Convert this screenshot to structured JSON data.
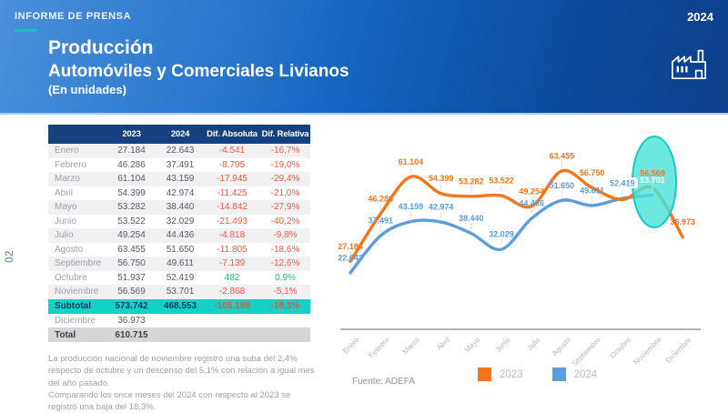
{
  "header": {
    "kicker": "INFORME DE PRENSA",
    "year": "2024",
    "title_line1": "Producción",
    "title_line2": "Automóviles y Comerciales Livianos",
    "title_line3": "(En unidades)"
  },
  "page_number": "02",
  "colors": {
    "negative": "#f15b44",
    "positive": "#28b878",
    "subtotal_highlight": "#12d2c5",
    "table_header": "#15417c",
    "accent_teal": "#00c9b7"
  },
  "table": {
    "headers": [
      "",
      "2023",
      "2024",
      "Dif. Absoluta",
      "Dif. Relativa"
    ],
    "rows": [
      {
        "label": "Enero",
        "y2023": "27.184",
        "y2024": "22.643",
        "dif_abs": "-4.541",
        "dif_rel": "-16,7%"
      },
      {
        "label": "Febrero",
        "y2023": "46.286",
        "y2024": "37.491",
        "dif_abs": "-8.795",
        "dif_rel": "-19,0%"
      },
      {
        "label": "Marzo",
        "y2023": "61.104",
        "y2024": "43.159",
        "dif_abs": "-17.945",
        "dif_rel": "-29,4%"
      },
      {
        "label": "Abril",
        "y2023": "54.399",
        "y2024": "42.974",
        "dif_abs": "-11.425",
        "dif_rel": "-21,0%"
      },
      {
        "label": "Mayo",
        "y2023": "53.282",
        "y2024": "38.440",
        "dif_abs": "-14.842",
        "dif_rel": "-27,9%"
      },
      {
        "label": "Junio",
        "y2023": "53.522",
        "y2024": "32.029",
        "dif_abs": "-21.493",
        "dif_rel": "-40,2%"
      },
      {
        "label": "Julio",
        "y2023": "49.254",
        "y2024": "44.436",
        "dif_abs": "-4.818",
        "dif_rel": "-9,8%"
      },
      {
        "label": "Agosto",
        "y2023": "63.455",
        "y2024": "51.650",
        "dif_abs": "-11.805",
        "dif_rel": "-18,6%"
      },
      {
        "label": "Septiembre",
        "y2023": "56.750",
        "y2024": "49.611",
        "dif_abs": "-7.139",
        "dif_rel": "-12,6%"
      },
      {
        "label": "Octubre",
        "y2023": "51.937",
        "y2024": "52.419",
        "dif_abs": "482",
        "dif_rel": "0,9%"
      },
      {
        "label": "Noviembre",
        "y2023": "56.569",
        "y2024": "53.701",
        "dif_abs": "-2.868",
        "dif_rel": "-5,1%"
      }
    ],
    "subtotal": {
      "label": "Subtotal",
      "y2023": "573.742",
      "y2024": "468.553",
      "dif_abs": "-105.189",
      "dif_rel": "-18,3%"
    },
    "extra_row": {
      "label": "Diciembre",
      "y2023": "36.973",
      "y2024": "",
      "dif_abs": "",
      "dif_rel": ""
    },
    "total": {
      "label": "Total",
      "y2023": "610.715",
      "y2024": "",
      "dif_abs": "",
      "dif_rel": ""
    }
  },
  "notes": [
    "La producción nacional de noviembre registró una suba del 2,4% respecto de octubre y un descenso del 5,1% con relación a igual mes del año pasado.",
    "Comparando los once meses del 2024 con respecto al 2023 se registró una baja del 18,3%."
  ],
  "source": "Fuente: ADEFA",
  "legend": [
    {
      "label": "2023",
      "color": "#f5761a"
    },
    {
      "label": "2024",
      "color": "#5b9dde"
    }
  ],
  "chart_data": {
    "type": "line",
    "title": "Producción Automóviles y Comerciales Livianos (En unidades)",
    "categories": [
      "Enero",
      "Febrero",
      "Marzo",
      "Abril",
      "Mayo",
      "Junio",
      "Julio",
      "Agosto",
      "Septiembre",
      "Octubre",
      "Noviembre",
      "Diciembre"
    ],
    "series": [
      {
        "name": "2023",
        "color": "#f5761a",
        "values": [
          27184,
          46286,
          61104,
          54399,
          53282,
          53522,
          49254,
          63455,
          56750,
          51937,
          56569,
          36973
        ],
        "labels": [
          "27.184",
          "46.286",
          "61.104",
          "54.399",
          "53.282",
          "53.522",
          "49.254",
          "63.455",
          "56.750",
          null,
          "56.569",
          "36.973"
        ]
      },
      {
        "name": "2024",
        "color": "#5b9dde",
        "values": [
          22643,
          37491,
          43159,
          42974,
          38440,
          32029,
          44436,
          51650,
          49611,
          52419,
          53701,
          null
        ],
        "labels": [
          "22.643",
          "37.491",
          "43.159",
          "42.974",
          "38.440",
          "32.029",
          "44.436",
          "51.650",
          "49.611",
          "52.419",
          "53.701",
          null
        ],
        "label_variants": {
          "9": "badge",
          "10": "inverse"
        }
      }
    ],
    "highlight": {
      "category": "Noviembre",
      "shape": "ellipse",
      "fill": "#48e2d9",
      "stroke": "#16cac1"
    },
    "ylim": [
      0,
      70000
    ],
    "grid": false,
    "legend_position": "bottom"
  }
}
